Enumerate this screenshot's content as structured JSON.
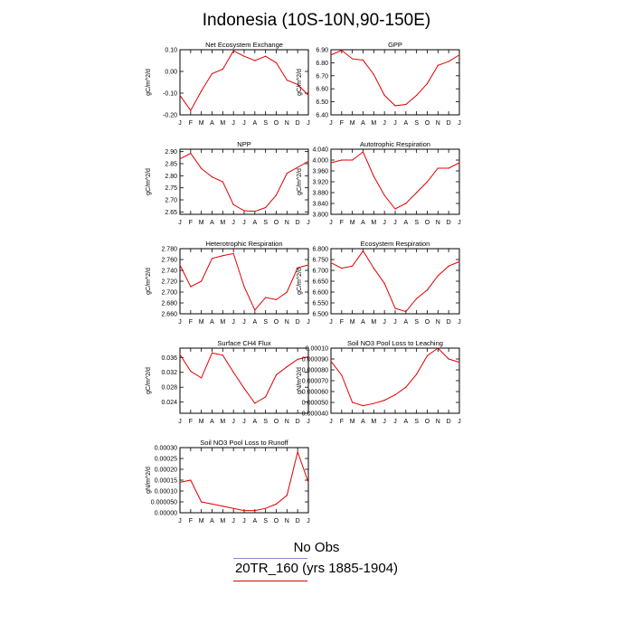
{
  "figure": {
    "title": "Indonesia (10S-10N,90-150E)",
    "line_color": "#e00000",
    "legend": [
      {
        "label": "No Obs",
        "color": "#8a8acc"
      },
      {
        "label": "20TR_160 (yrs 1885-1904)",
        "color": "#e00000"
      }
    ]
  },
  "chart_data": [
    {
      "type": "line",
      "title": "Net Ecosystem Exchange",
      "ylabel": "gC/m^2/d",
      "categories": [
        "J",
        "F",
        "M",
        "A",
        "M",
        "J",
        "J",
        "A",
        "S",
        "O",
        "N",
        "D",
        "J"
      ],
      "ylim": [
        -0.2,
        0.1
      ],
      "yticks": [
        {
          "v": 0.1,
          "t": "0.10"
        },
        {
          "v": 0.0,
          "t": "0.00"
        },
        {
          "v": -0.1,
          "t": "-0.10"
        },
        {
          "v": -0.2,
          "t": "-0.20"
        }
      ],
      "values": [
        -0.11,
        -0.18,
        -0.09,
        -0.01,
        0.01,
        0.095,
        0.07,
        0.05,
        0.07,
        0.04,
        -0.04,
        -0.06,
        -0.11
      ]
    },
    {
      "type": "line",
      "title": "GPP",
      "ylabel": "gC/m^2/d",
      "categories": [
        "J",
        "F",
        "M",
        "A",
        "M",
        "J",
        "J",
        "A",
        "S",
        "O",
        "N",
        "D",
        "J"
      ],
      "ylim": [
        6.4,
        6.9
      ],
      "yticks": [
        {
          "v": 6.9,
          "t": "6.90"
        },
        {
          "v": 6.8,
          "t": "6.80"
        },
        {
          "v": 6.7,
          "t": "6.70"
        },
        {
          "v": 6.6,
          "t": "6.60"
        },
        {
          "v": 6.5,
          "t": "6.50"
        },
        {
          "v": 6.4,
          "t": "6.40"
        }
      ],
      "values": [
        6.86,
        6.895,
        6.83,
        6.82,
        6.71,
        6.55,
        6.47,
        6.48,
        6.55,
        6.64,
        6.78,
        6.81,
        6.86
      ]
    },
    {
      "type": "line",
      "title": "NPP",
      "ylabel": "gC/m^2/d",
      "categories": [
        "J",
        "F",
        "M",
        "A",
        "M",
        "J",
        "J",
        "A",
        "S",
        "O",
        "N",
        "D",
        "J"
      ],
      "ylim": [
        2.64,
        2.91
      ],
      "yticks": [
        {
          "v": 2.9,
          "t": "2.90"
        },
        {
          "v": 2.85,
          "t": "2.85"
        },
        {
          "v": 2.8,
          "t": "2.80"
        },
        {
          "v": 2.75,
          "t": "2.75"
        },
        {
          "v": 2.7,
          "t": "2.70"
        },
        {
          "v": 2.65,
          "t": "2.65"
        }
      ],
      "values": [
        2.87,
        2.893,
        2.83,
        2.795,
        2.775,
        2.68,
        2.655,
        2.652,
        2.668,
        2.72,
        2.81,
        2.835,
        2.86
      ]
    },
    {
      "type": "line",
      "title": "Autotrophic Respiration",
      "ylabel": "gC/m^2/d",
      "categories": [
        "J",
        "F",
        "M",
        "A",
        "M",
        "J",
        "J",
        "A",
        "S",
        "O",
        "N",
        "D",
        "J"
      ],
      "ylim": [
        3.8,
        4.04
      ],
      "yticks": [
        {
          "v": 4.04,
          "t": "4.040"
        },
        {
          "v": 4.0,
          "t": "4.000"
        },
        {
          "v": 3.96,
          "t": "3.960"
        },
        {
          "v": 3.92,
          "t": "3.920"
        },
        {
          "v": 3.88,
          "t": "3.880"
        },
        {
          "v": 3.84,
          "t": "3.840"
        },
        {
          "v": 3.8,
          "t": "3.800"
        }
      ],
      "values": [
        3.99,
        4.0,
        4.0,
        4.03,
        3.94,
        3.87,
        3.82,
        3.84,
        3.88,
        3.92,
        3.97,
        3.97,
        3.99
      ]
    },
    {
      "type": "line",
      "title": "Heterotrophic Respiration",
      "ylabel": "gC/m^2/d",
      "categories": [
        "J",
        "F",
        "M",
        "A",
        "M",
        "J",
        "J",
        "A",
        "S",
        "O",
        "N",
        "D",
        "J"
      ],
      "ylim": [
        2.66,
        2.78
      ],
      "yticks": [
        {
          "v": 2.78,
          "t": "2.780"
        },
        {
          "v": 2.76,
          "t": "2.760"
        },
        {
          "v": 2.74,
          "t": "2.740"
        },
        {
          "v": 2.72,
          "t": "2.720"
        },
        {
          "v": 2.7,
          "t": "2.700"
        },
        {
          "v": 2.68,
          "t": "2.680"
        },
        {
          "v": 2.66,
          "t": "2.660"
        }
      ],
      "values": [
        2.75,
        2.71,
        2.72,
        2.762,
        2.767,
        2.771,
        2.71,
        2.667,
        2.69,
        2.686,
        2.7,
        2.745,
        2.75
      ]
    },
    {
      "type": "line",
      "title": "Ecosystem Respiration",
      "ylabel": "gC/m^2/d",
      "categories": [
        "J",
        "F",
        "M",
        "A",
        "M",
        "J",
        "J",
        "A",
        "S",
        "O",
        "N",
        "D",
        "J"
      ],
      "ylim": [
        6.5,
        6.8
      ],
      "yticks": [
        {
          "v": 6.8,
          "t": "6.800"
        },
        {
          "v": 6.75,
          "t": "6.750"
        },
        {
          "v": 6.7,
          "t": "6.700"
        },
        {
          "v": 6.65,
          "t": "6.650"
        },
        {
          "v": 6.6,
          "t": "6.600"
        },
        {
          "v": 6.55,
          "t": "6.550"
        },
        {
          "v": 6.5,
          "t": "6.500"
        }
      ],
      "values": [
        6.735,
        6.71,
        6.72,
        6.79,
        6.71,
        6.64,
        6.525,
        6.51,
        6.57,
        6.61,
        6.675,
        6.72,
        6.74
      ]
    },
    {
      "type": "line",
      "title": "Surface CH4 Flux",
      "ylabel": "gC/m^2/d",
      "categories": [
        "J",
        "F",
        "M",
        "A",
        "M",
        "J",
        "J",
        "A",
        "S",
        "O",
        "N",
        "D",
        "J"
      ],
      "ylim": [
        0.021,
        0.0385
      ],
      "yticks": [
        {
          "v": 0.036,
          "t": "0.036"
        },
        {
          "v": 0.032,
          "t": "0.032"
        },
        {
          "v": 0.028,
          "t": "0.028"
        },
        {
          "v": 0.024,
          "t": "0.024"
        }
      ],
      "values": [
        0.0368,
        0.0323,
        0.0305,
        0.0372,
        0.0366,
        0.032,
        0.0277,
        0.0237,
        0.0254,
        0.0313,
        0.0335,
        0.0355,
        0.0362
      ]
    },
    {
      "type": "line",
      "title": "Soil NO3 Pool Loss to Leaching",
      "ylabel": "gN/m^2/d",
      "categories": [
        "J",
        "F",
        "M",
        "A",
        "M",
        "J",
        "J",
        "A",
        "S",
        "O",
        "N",
        "D",
        "J"
      ],
      "ylim": [
        4e-05,
        0.0001
      ],
      "yticks": [
        {
          "v": 0.0001,
          "t": "0.00010"
        },
        {
          "v": 9e-05,
          "t": "0.000090"
        },
        {
          "v": 8e-05,
          "t": "0.000080"
        },
        {
          "v": 7e-05,
          "t": "0.000070"
        },
        {
          "v": 6e-05,
          "t": "0.000060"
        },
        {
          "v": 5e-05,
          "t": "0.000050"
        },
        {
          "v": 4e-05,
          "t": "0.000040"
        }
      ],
      "values": [
        8.8e-05,
        7.5e-05,
        5e-05,
        4.7e-05,
        4.9e-05,
        5.2e-05,
        5.7e-05,
        6.4e-05,
        7.6e-05,
        9.3e-05,
        0.0001,
        9e-05,
        8.7e-05
      ]
    },
    {
      "type": "line",
      "title": "Soil NO3 Pool Loss to Runoff",
      "ylabel": "gN/m^2/d",
      "categories": [
        "J",
        "F",
        "M",
        "A",
        "M",
        "J",
        "J",
        "A",
        "S",
        "O",
        "N",
        "D",
        "J"
      ],
      "ylim": [
        0,
        0.0003
      ],
      "yticks": [
        {
          "v": 0.0003,
          "t": "0.00030"
        },
        {
          "v": 0.00025,
          "t": "0.00025"
        },
        {
          "v": 0.0002,
          "t": "0.00020"
        },
        {
          "v": 0.00015,
          "t": "0.00015"
        },
        {
          "v": 0.0001,
          "t": "0.00010"
        },
        {
          "v": 5e-05,
          "t": "0.000050"
        },
        {
          "v": 0,
          "t": "0.00000"
        }
      ],
      "values": [
        0.00014,
        0.00015,
        5e-05,
        4e-05,
        3e-05,
        2e-05,
        1e-05,
        1e-05,
        2e-05,
        4e-05,
        8e-05,
        0.00028,
        0.00014
      ]
    }
  ]
}
